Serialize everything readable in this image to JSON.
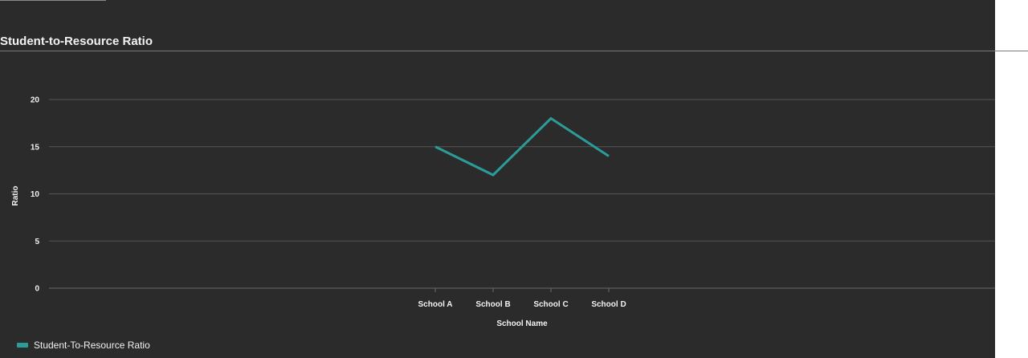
{
  "chart_data": {
    "type": "line",
    "title": "Student-to-Resource Ratio",
    "xlabel": "School Name",
    "ylabel": "Ratio",
    "categories": [
      "School A",
      "School B",
      "School C",
      "School D"
    ],
    "series": [
      {
        "name": "Student-To-Resource Ratio",
        "values": [
          15,
          12,
          18,
          14
        ]
      }
    ],
    "ylim": [
      0,
      20
    ],
    "yticks": [
      0,
      5,
      10,
      15,
      20
    ],
    "grid": true,
    "legend": "bottom-left"
  },
  "colors": {
    "background": "#2b2b2b",
    "series": "#2a9d9a",
    "grid": "#555555",
    "text": "#f2f2f2"
  }
}
